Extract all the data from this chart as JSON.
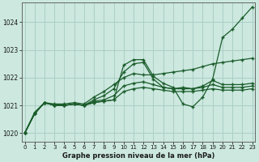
{
  "title": "Graphe pression niveau de la mer (hPa)",
  "background_color": "#cce8df",
  "grid_color": "#aacfc6",
  "line_color": "#1a5c2a",
  "x_ticks": [
    0,
    1,
    2,
    3,
    4,
    5,
    6,
    7,
    8,
    9,
    10,
    11,
    12,
    13,
    14,
    15,
    16,
    17,
    18,
    19,
    20,
    21,
    22,
    23
  ],
  "y_ticks": [
    1020,
    1021,
    1022,
    1023,
    1024
  ],
  "ylim": [
    1019.7,
    1024.7
  ],
  "xlim": [
    -0.3,
    23.3
  ],
  "lines": [
    [
      1020.0,
      1020.7,
      1021.1,
      1021.0,
      1021.0,
      1021.05,
      1021.0,
      1021.1,
      1021.15,
      1021.2,
      1022.45,
      1022.65,
      1022.65,
      1022.05,
      1021.8,
      1021.65,
      1021.05,
      1020.95,
      1021.3,
      1021.95,
      1023.45,
      1023.75,
      1024.15,
      1024.55
    ],
    [
      1020.0,
      1020.7,
      1021.1,
      1021.0,
      1021.0,
      1021.05,
      1021.0,
      1021.1,
      1021.15,
      1021.2,
      1021.5,
      1021.6,
      1021.65,
      1021.6,
      1021.55,
      1021.5,
      1021.5,
      1021.5,
      1021.55,
      1021.6,
      1021.55,
      1021.55,
      1021.55,
      1021.6
    ],
    [
      1020.0,
      1020.7,
      1021.1,
      1021.0,
      1021.0,
      1021.05,
      1021.0,
      1021.15,
      1021.2,
      1021.35,
      1021.7,
      1021.8,
      1021.85,
      1021.75,
      1021.65,
      1021.6,
      1021.6,
      1021.6,
      1021.65,
      1021.75,
      1021.65,
      1021.65,
      1021.65,
      1021.7
    ],
    [
      1020.0,
      1020.7,
      1021.1,
      1021.0,
      1021.0,
      1021.05,
      1021.0,
      1021.2,
      1021.35,
      1021.6,
      1022.2,
      1022.5,
      1022.55,
      1021.95,
      1021.65,
      1021.6,
      1021.65,
      1021.6,
      1021.7,
      1021.9,
      1021.75,
      1021.75,
      1021.75,
      1021.8
    ],
    [
      1020.0,
      1020.75,
      1021.1,
      1021.05,
      1021.05,
      1021.1,
      1021.05,
      1021.3,
      1021.5,
      1021.75,
      1022.0,
      1022.15,
      1022.1,
      1022.1,
      1022.15,
      1022.2,
      1022.25,
      1022.3,
      1022.4,
      1022.5,
      1022.55,
      1022.6,
      1022.65,
      1022.7
    ]
  ]
}
